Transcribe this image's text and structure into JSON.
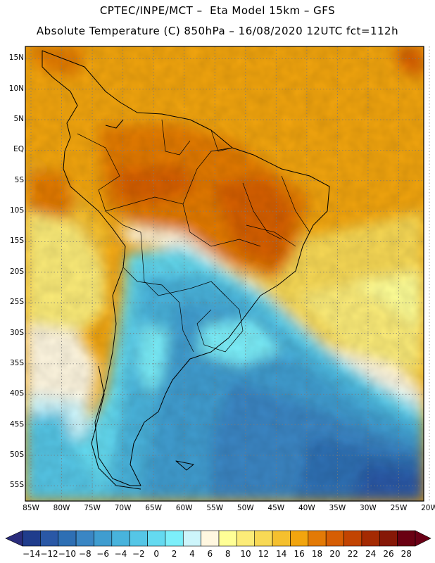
{
  "header": {
    "line1": "CPTEC/INPE/MCT –  Eta Model 15km – GFS",
    "line2": "Absolute Temperature (C) 850hPa – 16/08/2020 12UTC fct=112h"
  },
  "map": {
    "region": "South America",
    "lat_labels": [
      "15N",
      "10N",
      "5N",
      "EQ",
      "5S",
      "10S",
      "15S",
      "20S",
      "25S",
      "30S",
      "35S",
      "40S",
      "45S",
      "50S",
      "55S"
    ],
    "lon_labels": [
      "85W",
      "80W",
      "75W",
      "70W",
      "65W",
      "60W",
      "55W",
      "50W",
      "45W",
      "40W",
      "35W",
      "30W",
      "25W",
      "20W"
    ]
  },
  "colorbar": {
    "labels": [
      "-14",
      "-12",
      "-10",
      "-8",
      "-6",
      "-4",
      "-2",
      "0",
      "2",
      "4",
      "6",
      "8",
      "10",
      "12",
      "14",
      "16",
      "18",
      "20",
      "22",
      "24",
      "26",
      "28"
    ],
    "colors": [
      "#1f3c8c",
      "#2a58a6",
      "#2e6fb4",
      "#3a86c4",
      "#3f9dd0",
      "#48b3dc",
      "#55c6e6",
      "#64daf0",
      "#7ceffa",
      "#cdf5fb",
      "#fff7e0",
      "#ffff96",
      "#fcec78",
      "#f8d955",
      "#f5c02e",
      "#f2a50e",
      "#e37a06",
      "#d65e04",
      "#c24402",
      "#a42a02",
      "#861807",
      "#6a0012"
    ],
    "under_color": "#2a2c7c",
    "over_color": "#6a0016"
  }
}
